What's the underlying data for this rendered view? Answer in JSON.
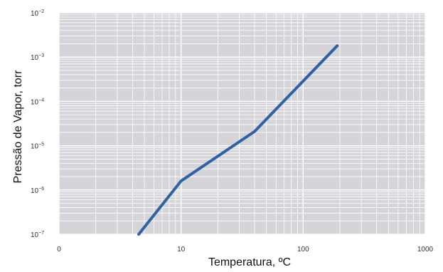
{
  "chart_data": {
    "type": "line",
    "title": "",
    "xlabel": "Temperatura, ºC",
    "ylabel": "Pressão de Vapor, torr",
    "x_scale": "log",
    "y_scale": "log",
    "xlim": [
      1,
      1000
    ],
    "ylim": [
      1e-07,
      0.01
    ],
    "grid": true,
    "x_ticks": [
      {
        "value": 1,
        "label": "0"
      },
      {
        "value": 10,
        "label": "10"
      },
      {
        "value": 100,
        "label": "100"
      },
      {
        "value": 1000,
        "label": "1000"
      }
    ],
    "y_ticks": [
      {
        "value": 1e-07,
        "base": "10",
        "exp": "−7"
      },
      {
        "value": 1e-06,
        "base": "10",
        "exp": "−6"
      },
      {
        "value": 1e-05,
        "base": "10",
        "exp": "−5"
      },
      {
        "value": 0.0001,
        "base": "10",
        "exp": "−4"
      },
      {
        "value": 0.001,
        "base": "10",
        "exp": "−3"
      },
      {
        "value": 0.01,
        "base": "10",
        "exp": "−2"
      }
    ],
    "series": [
      {
        "color": "#2e62a4",
        "x": [
          4.5,
          10,
          40,
          190
        ],
        "y": [
          1e-07,
          1.6e-06,
          2.1e-05,
          0.0018
        ]
      }
    ]
  },
  "colors": {
    "plot_background": "#d4d4d9",
    "grid": "#ffffff",
    "series_line": "#2e62a4"
  }
}
